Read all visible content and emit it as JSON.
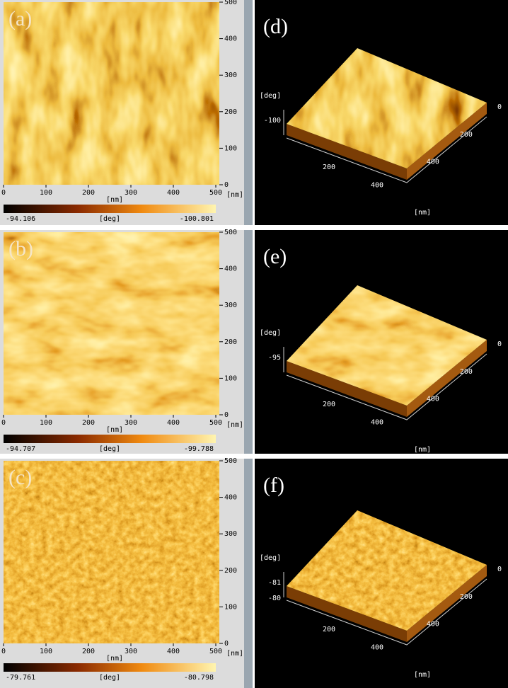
{
  "panels_2d": [
    {
      "label": "(a)",
      "x_ticks": [
        "0",
        "100",
        "200",
        "300",
        "400",
        "500"
      ],
      "y_ticks": [
        "500",
        "400",
        "300",
        "200",
        "100",
        "0"
      ],
      "unit": "[nm]",
      "colorbar": {
        "min": "-94.106",
        "unit": "[deg]",
        "max": "-100.801"
      }
    },
    {
      "label": "(b)",
      "x_ticks": [
        "0",
        "100",
        "200",
        "300",
        "400",
        "500"
      ],
      "y_ticks": [
        "500",
        "400",
        "300",
        "200",
        "100",
        "0"
      ],
      "unit": "[nm]",
      "colorbar": {
        "min": "-94.707",
        "unit": "[deg]",
        "max": "-99.788"
      }
    },
    {
      "label": "(c)",
      "x_ticks": [
        "0",
        "100",
        "200",
        "300",
        "400",
        "500"
      ],
      "y_ticks": [
        "500",
        "400",
        "300",
        "200",
        "100",
        "0"
      ],
      "unit": "[nm]",
      "colorbar": {
        "min": "-79.761",
        "unit": "[deg]",
        "max": "-80.798"
      }
    }
  ],
  "panels_3d": [
    {
      "label": "(d)",
      "z_unit": "[deg]",
      "z_ticks": [
        "-100"
      ],
      "x_ticks": [
        "200",
        "400"
      ],
      "y_ticks": [
        "0",
        "200",
        "400"
      ],
      "unit": "[nm]"
    },
    {
      "label": "(e)",
      "z_unit": "[deg]",
      "z_ticks": [
        "-95"
      ],
      "x_ticks": [
        "200",
        "400"
      ],
      "y_ticks": [
        "0",
        "200",
        "400"
      ],
      "unit": "[nm]"
    },
    {
      "label": "(f)",
      "z_unit": "[deg]",
      "z_ticks": [
        "-81",
        "-80"
      ],
      "x_ticks": [
        "200",
        "400"
      ],
      "y_ticks": [
        "0",
        "200",
        "400"
      ],
      "unit": "[nm]"
    }
  ]
}
